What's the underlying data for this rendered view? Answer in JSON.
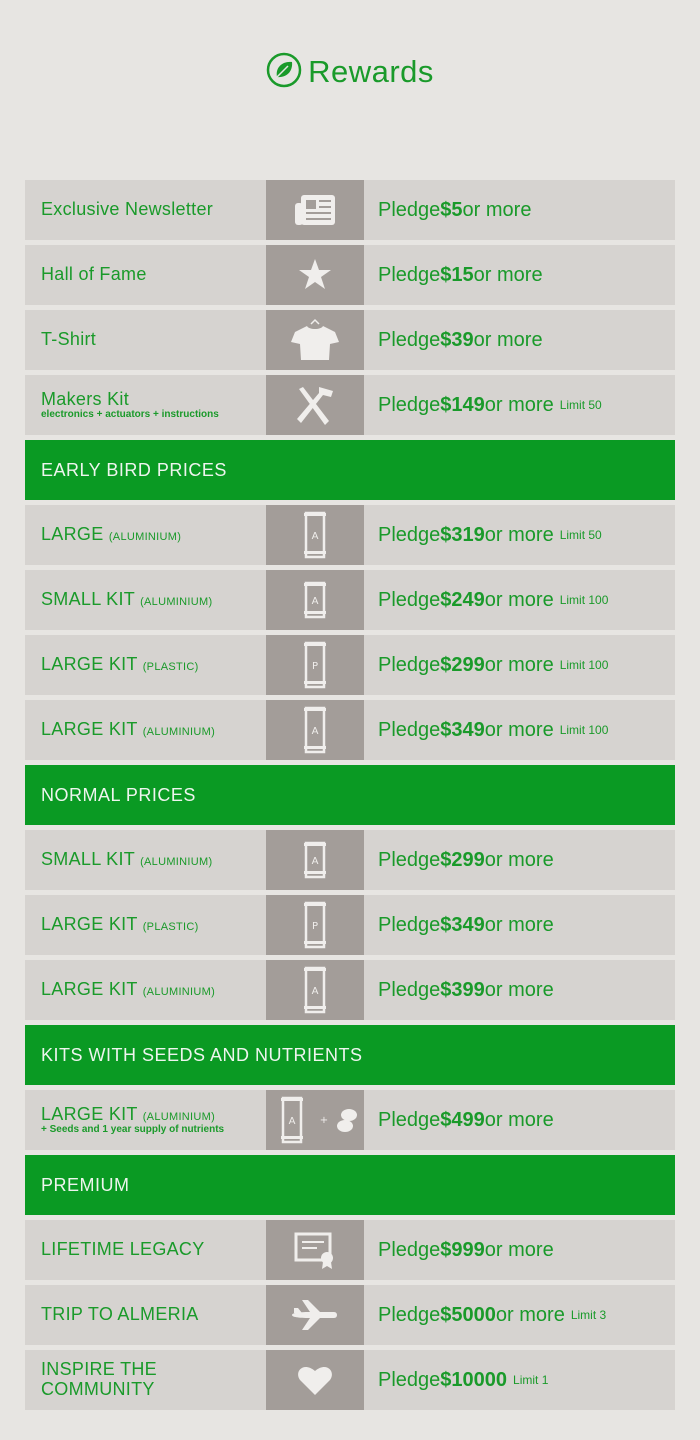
{
  "header": {
    "title": "Rewards",
    "logo_icon": "leaf-icon"
  },
  "colors": {
    "accent": "#0a9a23",
    "text_green": "#1a9a2a",
    "row_bg": "#d6d3d0",
    "icon_bg": "#a39d99",
    "page_bg": "#e7e5e2"
  },
  "items": [
    {
      "type": "row",
      "name": "Exclusive Newsletter",
      "icon": "newspaper-icon",
      "amount": "$5",
      "more": "or more"
    },
    {
      "type": "row",
      "name": "Hall of Fame",
      "icon": "star-icon",
      "amount": "$15",
      "more": "or more"
    },
    {
      "type": "row",
      "name": "T-Shirt",
      "icon": "tshirt-icon",
      "amount": "$39",
      "more": "or more"
    },
    {
      "type": "row",
      "name": "Makers Kit",
      "sub": "electronics + actuators + instructions",
      "icon": "tools-icon",
      "amount": "$149",
      "more": "or more",
      "limit": "Limit 50"
    },
    {
      "type": "header",
      "label": "EARLY BIRD PRICES"
    },
    {
      "type": "row",
      "name": "LARGE",
      "suffix": "(ALUMINIUM)",
      "icon": "large-frame-a-icon",
      "glyph": "A",
      "amount": "$319",
      "more": "or more",
      "limit": "Limit 50"
    },
    {
      "type": "row",
      "name": "SMALL KIT",
      "suffix": "(ALUMINIUM)",
      "icon": "small-frame-a-icon",
      "glyph": "A",
      "amount": "$249",
      "more": "or more",
      "limit": "Limit 100"
    },
    {
      "type": "row",
      "name": "LARGE KIT",
      "suffix": "(PLASTIC)",
      "icon": "large-frame-p-icon",
      "glyph": "P",
      "amount": "$299",
      "more": "or more",
      "limit": "Limit 100"
    },
    {
      "type": "row",
      "name": "LARGE KIT",
      "suffix": "(ALUMINIUM)",
      "icon": "large-frame-a-icon",
      "glyph": "A",
      "amount": "$349",
      "more": "or more",
      "limit": "Limit 100"
    },
    {
      "type": "header",
      "label": "NORMAL PRICES"
    },
    {
      "type": "row",
      "name": "SMALL KIT",
      "suffix": "(ALUMINIUM)",
      "icon": "small-frame-a-icon",
      "glyph": "A",
      "amount": "$299",
      "more": "or more"
    },
    {
      "type": "row",
      "name": "LARGE KIT",
      "suffix": "(PLASTIC)",
      "icon": "large-frame-p-icon",
      "glyph": "P",
      "amount": "$349",
      "more": "or more"
    },
    {
      "type": "row",
      "name": "LARGE KIT",
      "suffix": "(ALUMINIUM)",
      "icon": "large-frame-a-icon",
      "glyph": "A",
      "amount": "$399",
      "more": "or more"
    },
    {
      "type": "header",
      "label": "KITS WITH SEEDS AND NUTRIENTS"
    },
    {
      "type": "row",
      "name": "LARGE KIT",
      "suffix": "(ALUMINIUM)",
      "sub": "+ Seeds and 1 year supply of nutrients",
      "icon": "frame-plus-seeds-icon",
      "glyph": "A",
      "amount": "$499",
      "more": "or more"
    },
    {
      "type": "header",
      "label": "PREMIUM"
    },
    {
      "type": "row",
      "name": "LIFETIME LEGACY",
      "icon": "certificate-icon",
      "amount": "$999",
      "more": "or more"
    },
    {
      "type": "row",
      "name": "TRIP TO ALMERIA",
      "icon": "airplane-icon",
      "amount": "$5000",
      "more": "or more",
      "limit": "Limit 3"
    },
    {
      "type": "row",
      "name": "INSPIRE THE COMMUNITY",
      "icon": "heart-icon",
      "amount": "$10000",
      "limit": "Limit 1"
    }
  ],
  "pledge_word": "Pledge"
}
